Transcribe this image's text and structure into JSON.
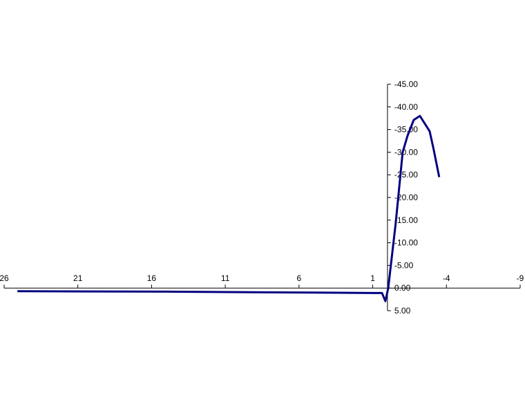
{
  "chart_data": {
    "type": "line",
    "title": "",
    "xlabel": "",
    "ylabel": "",
    "xlim": [
      26,
      -9
    ],
    "ylim": [
      -45,
      5
    ],
    "x_reversed": true,
    "y_reversed": true,
    "grid": false,
    "legend": "none",
    "line_color": "#000080",
    "x_ticks": [
      26,
      21,
      16,
      11,
      6,
      1,
      -4,
      -9
    ],
    "x_tick_labels": [
      "26",
      "21",
      "16",
      "11",
      "6",
      "1",
      "-4",
      "-9"
    ],
    "y_ticks": [
      -45,
      -40,
      -35,
      -30,
      -25,
      -20,
      -15,
      -10,
      -5,
      0,
      5
    ],
    "y_tick_labels": [
      "-45.00",
      "-40.00",
      "-35.00",
      "-30.00",
      "-25.00",
      "-20.00",
      "-15.00",
      "-10.00",
      "-5.00",
      "0.00",
      "5.00"
    ],
    "series": [
      {
        "x": [
          25.1,
          20,
          15,
          10,
          5,
          1,
          0.37,
          0.14,
          -0.05,
          -0.56,
          -1.03,
          -1.36,
          -1.78,
          -2.2,
          -2.86,
          -3.14,
          -3.51
        ],
        "y": [
          0.7,
          0.75,
          0.8,
          0.9,
          1.0,
          1.1,
          1.1,
          2.9,
          0.0,
          -14.4,
          -30.0,
          -33.6,
          -37.1,
          -38.0,
          -34.6,
          -30.5,
          -24.5
        ]
      }
    ]
  }
}
